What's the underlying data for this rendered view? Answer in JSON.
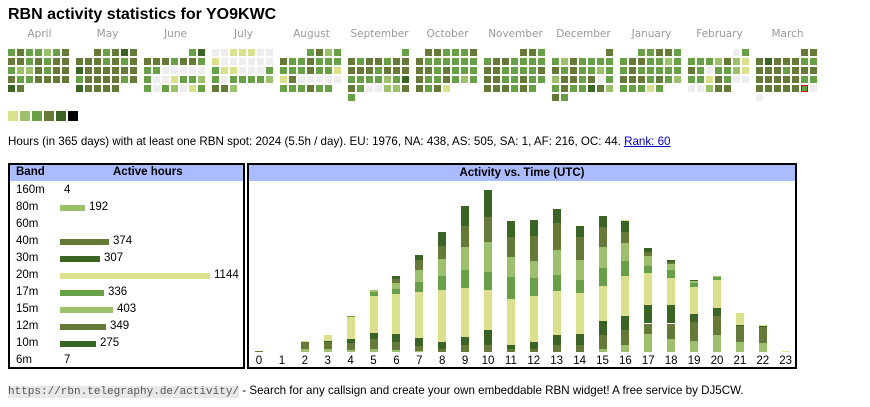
{
  "title": "RBN activity statistics for YO9KWC",
  "colors": {
    "E": "#eeeeee",
    "Y": "#dbe08a",
    "L": "#9dc16a",
    "G": "#68a045",
    "O": "#667a38",
    "D": "#3a6424",
    "K": "#000000",
    "header": "#aabbff"
  },
  "calendar": {
    "months": [
      {
        "label": "April",
        "rows": [
          "GOGGLGO",
          "OOGOGOO",
          "GLLOGOO",
          "OGGOOOO",
          "DO....."
        ]
      },
      {
        "label": "May",
        "rows": [
          "..OGODO",
          "OOOGOGO",
          "DOOOOOO",
          "GOOOOGO",
          "DOOOO.."
        ]
      },
      {
        "label": "June",
        "rows": [
          ".....GD",
          "OOOGOOG",
          "GGEEEEE",
          "GEEYGGL",
          "GEGLEYG"
        ]
      },
      {
        "label": "July",
        "rows": [
          "EEYYYEE",
          "YEEEEEE",
          "GYYEEEG",
          "GEGGGGL",
          "OOL...."
        ]
      },
      {
        "label": "August",
        "rows": [
          "...GOLG",
          "OGGOGGG",
          "GGGOGGY",
          "YOEEEEE",
          "GGGOGG."
        ]
      },
      {
        "label": "September",
        "rows": [
          "......G",
          "OGOOGOO",
          "OOOGOOO",
          "GGGGLGD",
          "OGEELLO",
          "G......"
        ]
      },
      {
        "label": "October",
        "rows": [
          ".OOGGGO",
          "OGGGGGG",
          "OOGOGGG",
          "OGGOGLG",
          "OGOY..."
        ]
      },
      {
        "label": "November",
        "rows": [
          "....OOG",
          "GOOGGGG",
          "OOGGGGO",
          "OOGGOGG",
          "OOOGOG."
        ]
      },
      {
        "label": "December",
        "rows": [
          "......O",
          "GLOGGGG",
          "OGOGGLG",
          "LOOGOEG",
          "GOGGDOL",
          "OG....."
        ]
      },
      {
        "label": "January",
        "rows": [
          "..GGOOG",
          "GOOGGLG",
          "GOGGGGG",
          "OOOGOGL",
          "GGGYG.."
        ]
      },
      {
        "label": "February",
        "rows": [
          ".....EG",
          "GGGLOLY",
          "OGEGGLY",
          "GGYOGEE",
          "EELOO.."
        ]
      },
      {
        "label": "March",
        "rows": [
          ".....OO",
          "ODOOOGG",
          "OOOGOOO",
          "OOOOOGG",
          "OOOOOTE",
          "E......"
        ]
      }
    ],
    "legend": [
      "Y",
      "L",
      "G",
      "O",
      "D",
      "K"
    ]
  },
  "summary": {
    "text": "Hours (in 365 days) with at least one RBN spot: 2024 (5.5h / day). EU: 1976, NA: 438, AS: 505, SA: 1, AF: 216, OC: 44. ",
    "rank_link": "Rank: 60"
  },
  "band_table": {
    "header_band": "Band",
    "header_hours": "Active hours",
    "rows": [
      {
        "band": "160m",
        "hours": 4,
        "label": "4",
        "color": "#3a6424"
      },
      {
        "band": "80m",
        "hours": 192,
        "label": "192",
        "color": "#9dc16a"
      },
      {
        "band": "60m",
        "hours": 0,
        "label": "",
        "color": "#68a045"
      },
      {
        "band": "40m",
        "hours": 374,
        "label": "374",
        "color": "#667a38"
      },
      {
        "band": "30m",
        "hours": 307,
        "label": "307",
        "color": "#3a6424"
      },
      {
        "band": "20m",
        "hours": 1144,
        "label": "1144",
        "color": "#dbe08a"
      },
      {
        "band": "17m",
        "hours": 336,
        "label": "336",
        "color": "#68a045"
      },
      {
        "band": "15m",
        "hours": 403,
        "label": "403",
        "color": "#9dc16a"
      },
      {
        "band": "12m",
        "hours": 349,
        "label": "349",
        "color": "#667a38"
      },
      {
        "band": "10m",
        "hours": 275,
        "label": "275",
        "color": "#3a6424"
      },
      {
        "band": "6m",
        "hours": 7,
        "label": "7",
        "color": "#dbe08a"
      }
    ]
  },
  "chart_data": {
    "type": "bar",
    "stacked": true,
    "title": "Activity vs. Time (UTC)",
    "xlabel": "",
    "ylabel": "",
    "categories": [
      "0",
      "1",
      "2",
      "3",
      "4",
      "5",
      "6",
      "7",
      "8",
      "9",
      "10",
      "11",
      "12",
      "13",
      "14",
      "15",
      "16",
      "17",
      "18",
      "19",
      "20",
      "21",
      "22",
      "23"
    ],
    "stack_order": [
      "80m",
      "40m",
      "30m",
      "20m",
      "17m",
      "15m",
      "12m",
      "10m",
      "6m"
    ],
    "stack_colors": [
      "#9dc16a",
      "#667a38",
      "#3a6424",
      "#dbe08a",
      "#68a045",
      "#9dc16a",
      "#667a38",
      "#3a6424",
      "#dbe08a"
    ],
    "series_values": [
      [
        0,
        1,
        0,
        0,
        0,
        0,
        0,
        0,
        0
      ],
      [
        0,
        0,
        0,
        0,
        0,
        0,
        0,
        0,
        0
      ],
      [
        5,
        12,
        0,
        2,
        0,
        0,
        0,
        0,
        0
      ],
      [
        6,
        11,
        2,
        10,
        0,
        0,
        0,
        0,
        0
      ],
      [
        3,
        12,
        7,
        41,
        1,
        0,
        0,
        0,
        0
      ],
      [
        5,
        17,
        12,
        65,
        7,
        2,
        0,
        0,
        0
      ],
      [
        3,
        14,
        14,
        70,
        10,
        10,
        7,
        5,
        0
      ],
      [
        1,
        10,
        14,
        81,
        16,
        21,
        18,
        10,
        0
      ],
      [
        0,
        5,
        12,
        91,
        25,
        30,
        23,
        25,
        0
      ],
      [
        0,
        12,
        14,
        86,
        32,
        40,
        37,
        36,
        0
      ],
      [
        0,
        13,
        25,
        70,
        32,
        53,
        44,
        48,
        0
      ],
      [
        0,
        5,
        7,
        81,
        39,
        35,
        35,
        28,
        0
      ],
      [
        0,
        6,
        12,
        81,
        30,
        30,
        44,
        28,
        0
      ],
      [
        0,
        12,
        18,
        77,
        28,
        44,
        47,
        25,
        0
      ],
      [
        0,
        13,
        19,
        72,
        23,
        35,
        39,
        20,
        0
      ],
      [
        6,
        23,
        25,
        61,
        32,
        37,
        35,
        20,
        0
      ],
      [
        13,
        26,
        25,
        70,
        25,
        33,
        19,
        18,
        2
      ],
      [
        31,
        19,
        33,
        56,
        12,
        18,
        7,
        7,
        0
      ],
      [
        22,
        28,
        33,
        46,
        14,
        11,
        4,
        4,
        0
      ],
      [
        20,
        33,
        14,
        47,
        7,
        4,
        1,
        1,
        0
      ],
      [
        29,
        35,
        14,
        49,
        5,
        2,
        0,
        0,
        0
      ],
      [
        17,
        29,
        2,
        20,
        0,
        0,
        0,
        0,
        0
      ],
      [
        15,
        29,
        2,
        2,
        0,
        0,
        0,
        0,
        0
      ],
      [
        0,
        0,
        0,
        1,
        0,
        0,
        0,
        0,
        0
      ]
    ],
    "ylim": [
      0,
      290
    ],
    "grid": false
  },
  "footer": {
    "url": "https://rbn.telegraphy.de/activity/",
    "text": " - Search for any callsign and create your own embeddable RBN widget! A free service by DJ5CW."
  }
}
